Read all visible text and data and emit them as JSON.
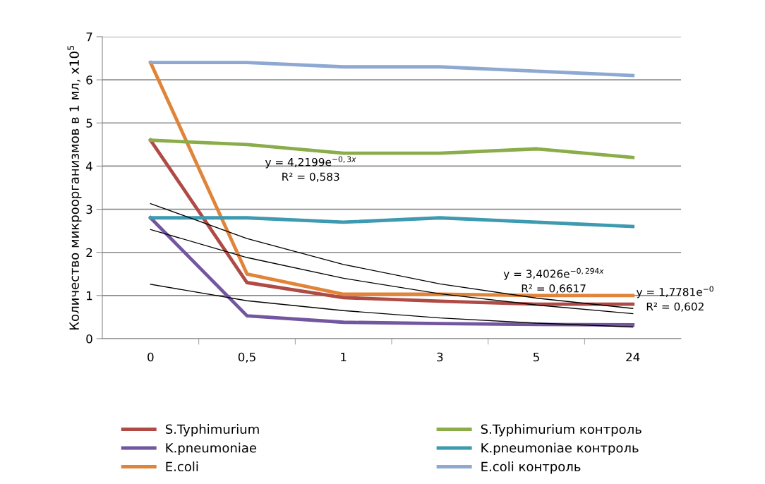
{
  "chart_data": {
    "type": "line",
    "ylabel": "Количество микроорганизмов в 1 мл, х10$^{5}$",
    "categories": [
      "0",
      "0,5",
      "1",
      "3",
      "5",
      "24"
    ],
    "series": [
      {
        "name": "S.Typhimurium",
        "color": "#b04a45",
        "values": [
          4.6,
          1.3,
          0.95,
          0.87,
          0.8,
          0.8
        ]
      },
      {
        "name": "K.pneumoniae",
        "color": "#7356a0",
        "values": [
          2.8,
          0.53,
          0.38,
          0.35,
          0.33,
          0.32
        ]
      },
      {
        "name": "E.coli",
        "color": "#e0843a",
        "values": [
          6.4,
          1.5,
          1.03,
          1.03,
          1.0,
          1.0
        ]
      },
      {
        "name": "S.Typhimurium контроль",
        "color": "#8aac49",
        "values": [
          4.6,
          4.5,
          4.3,
          4.3,
          4.4,
          4.2
        ]
      },
      {
        "name": "K.pneumoniae контроль",
        "color": "#3d9ab0",
        "values": [
          2.8,
          2.8,
          2.7,
          2.8,
          2.7,
          2.6
        ]
      },
      {
        "name": "E.coli контроль",
        "color": "#8ea9d1",
        "values": [
          6.4,
          6.4,
          6.3,
          6.3,
          6.2,
          6.1
        ]
      },
      {
        "color": "#000000",
        "values": [
          3.13,
          2.32,
          1.72,
          1.27,
          0.94,
          0.7
        ]
      },
      {
        "color": "#000000",
        "values": [
          2.53,
          1.88,
          1.4,
          1.04,
          0.78,
          0.58
        ]
      },
      {
        "color": "#000000",
        "values": [
          1.26,
          0.88,
          0.65,
          0.48,
          0.36,
          0.27
        ]
      }
    ],
    "annotations": [
      "y = 4,2199e$^{−0,3x}$\nR² = 0,583",
      "y = 3,4026e$^{−0,294x}$\nR² = 0,6617",
      "y = 1,7781e$^{−0}$\nR² = 0,602"
    ],
    "ylim": [
      0,
      7
    ],
    "yticks": [
      0,
      1,
      2,
      3,
      4,
      5,
      6,
      7
    ],
    "grid": "y",
    "legend": "bottom",
    "marker": "none",
    "line_style": "solid"
  }
}
